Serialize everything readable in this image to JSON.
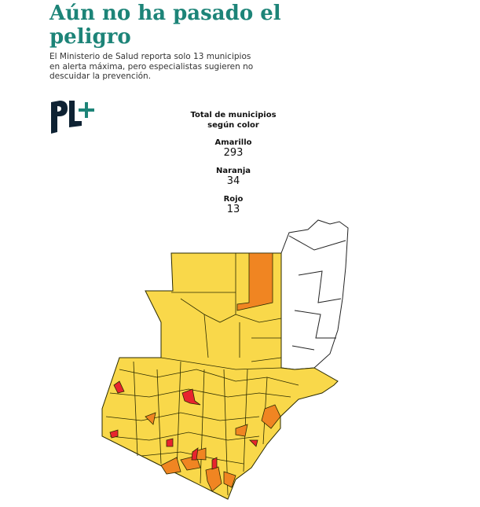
{
  "header": {
    "title": "Aún no ha pasado el peligro",
    "subtitle": "El Ministerio de Salud reporta solo 13 municipios en alerta máxima, pero especialistas sugieren no descuidar la prevención."
  },
  "logo": {
    "text": "PL+",
    "color": "#0e2233",
    "accent": "#1d8478"
  },
  "legend": {
    "title": "Total de municipios según color",
    "items": [
      {
        "label": "Amarillo",
        "value": "293",
        "color": "#f9d84a"
      },
      {
        "label": "Naranja",
        "value": "34",
        "color": "#f08522"
      },
      {
        "label": "Rojo",
        "value": "13",
        "color": "#e8242e"
      }
    ]
  }
}
